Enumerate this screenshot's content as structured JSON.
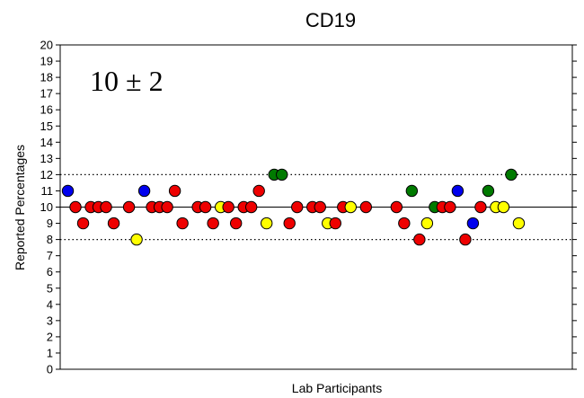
{
  "chart_data": {
    "type": "scatter",
    "title": "CD19",
    "xlabel": "Lab Participants",
    "ylabel": "Reported Percentages",
    "ylim": [
      0,
      20
    ],
    "yticks": [
      0,
      1,
      2,
      3,
      4,
      5,
      6,
      7,
      8,
      9,
      10,
      11,
      12,
      13,
      14,
      15,
      16,
      17,
      18,
      19,
      20
    ],
    "annotation": "10 ± 2",
    "reference_lines": [
      {
        "name": "target",
        "y": 10,
        "style": "solid"
      },
      {
        "name": "upper-limit",
        "y": 12,
        "style": "dotted"
      },
      {
        "name": "lower-limit",
        "y": 8,
        "style": "dotted"
      }
    ],
    "colors": {
      "red": "#ee0000",
      "blue": "#0000ee",
      "yellow": "#ffff00",
      "green": "#007a00",
      "edge": "#000000"
    },
    "points": [
      {
        "x": 1,
        "y": 11,
        "color": "blue"
      },
      {
        "x": 2,
        "y": 10,
        "color": "red"
      },
      {
        "x": 3,
        "y": 9,
        "color": "red"
      },
      {
        "x": 4,
        "y": 10,
        "color": "red"
      },
      {
        "x": 5,
        "y": 10,
        "color": "red"
      },
      {
        "x": 6,
        "y": 10,
        "color": "red"
      },
      {
        "x": 7,
        "y": 9,
        "color": "red"
      },
      {
        "x": 9,
        "y": 10,
        "color": "red"
      },
      {
        "x": 10,
        "y": 8,
        "color": "yellow"
      },
      {
        "x": 11,
        "y": 11,
        "color": "blue"
      },
      {
        "x": 12,
        "y": 10,
        "color": "red"
      },
      {
        "x": 13,
        "y": 10,
        "color": "red"
      },
      {
        "x": 14,
        "y": 10,
        "color": "red"
      },
      {
        "x": 15,
        "y": 11,
        "color": "red"
      },
      {
        "x": 16,
        "y": 9,
        "color": "red"
      },
      {
        "x": 18,
        "y": 10,
        "color": "red"
      },
      {
        "x": 19,
        "y": 10,
        "color": "red"
      },
      {
        "x": 20,
        "y": 9,
        "color": "red"
      },
      {
        "x": 21,
        "y": 10,
        "color": "yellow"
      },
      {
        "x": 22,
        "y": 10,
        "color": "red"
      },
      {
        "x": 23,
        "y": 9,
        "color": "red"
      },
      {
        "x": 24,
        "y": 10,
        "color": "red"
      },
      {
        "x": 25,
        "y": 10,
        "color": "red"
      },
      {
        "x": 26,
        "y": 11,
        "color": "red"
      },
      {
        "x": 27,
        "y": 9,
        "color": "yellow"
      },
      {
        "x": 28,
        "y": 12,
        "color": "green"
      },
      {
        "x": 29,
        "y": 12,
        "color": "green"
      },
      {
        "x": 30,
        "y": 9,
        "color": "red"
      },
      {
        "x": 31,
        "y": 10,
        "color": "red"
      },
      {
        "x": 33,
        "y": 10,
        "color": "red"
      },
      {
        "x": 34,
        "y": 10,
        "color": "red"
      },
      {
        "x": 35,
        "y": 9,
        "color": "yellow"
      },
      {
        "x": 36,
        "y": 9,
        "color": "red"
      },
      {
        "x": 37,
        "y": 10,
        "color": "red"
      },
      {
        "x": 38,
        "y": 10,
        "color": "yellow"
      },
      {
        "x": 40,
        "y": 10,
        "color": "red"
      },
      {
        "x": 44,
        "y": 10,
        "color": "red"
      },
      {
        "x": 45,
        "y": 9,
        "color": "red"
      },
      {
        "x": 46,
        "y": 11,
        "color": "green"
      },
      {
        "x": 47,
        "y": 8,
        "color": "red"
      },
      {
        "x": 48,
        "y": 9,
        "color": "yellow"
      },
      {
        "x": 49,
        "y": 10,
        "color": "green"
      },
      {
        "x": 50,
        "y": 10,
        "color": "red"
      },
      {
        "x": 51,
        "y": 10,
        "color": "red"
      },
      {
        "x": 52,
        "y": 11,
        "color": "blue"
      },
      {
        "x": 53,
        "y": 8,
        "color": "red"
      },
      {
        "x": 54,
        "y": 9,
        "color": "blue"
      },
      {
        "x": 55,
        "y": 10,
        "color": "red"
      },
      {
        "x": 56,
        "y": 11,
        "color": "green"
      },
      {
        "x": 57,
        "y": 10,
        "color": "yellow"
      },
      {
        "x": 58,
        "y": 10,
        "color": "yellow"
      },
      {
        "x": 59,
        "y": 12,
        "color": "green"
      },
      {
        "x": 60,
        "y": 9,
        "color": "yellow"
      }
    ]
  }
}
